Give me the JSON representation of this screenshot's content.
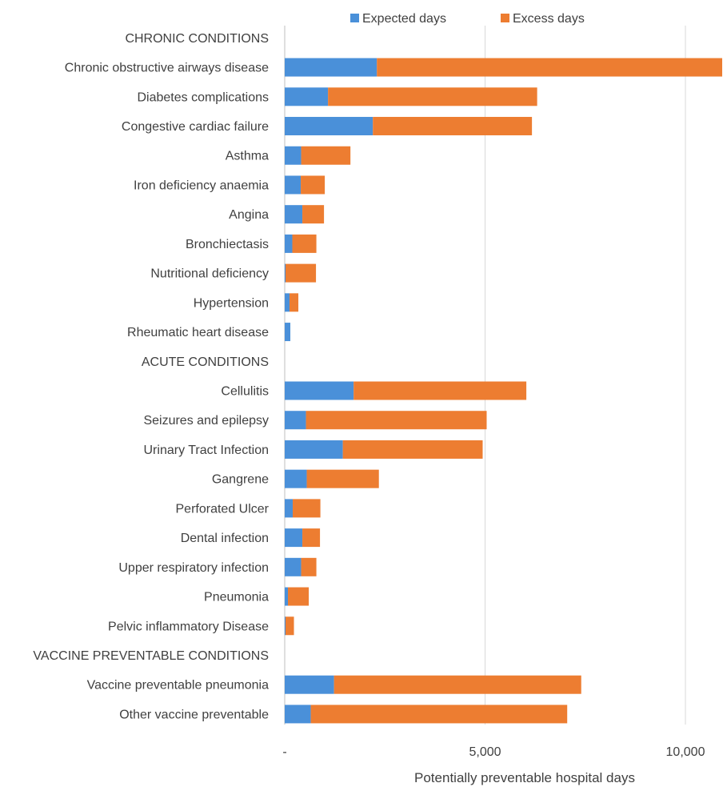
{
  "chart_data": {
    "type": "bar",
    "orientation": "horizontal",
    "stacked": true,
    "title": "",
    "xlabel": "Potentially preventable hospital days",
    "ylabel": "",
    "xlim": [
      0,
      11000
    ],
    "xticks": [
      0,
      5000,
      10000
    ],
    "xtick_labels": [
      "-",
      "5,000",
      "10,000"
    ],
    "grid": "vertical",
    "legend_position": "top",
    "categories": [
      "CHRONIC CONDITIONS",
      "Chronic obstructive airways disease",
      "Diabetes complications",
      "Congestive cardiac failure",
      "Asthma",
      "Iron deficiency anaemia",
      "Angina",
      "Bronchiectasis",
      "Nutritional deficiency",
      "Hypertension",
      "Rheumatic heart disease",
      "ACUTE CONDITIONS",
      "Cellulitis",
      "Seizures and epilepsy",
      "Urinary Tract Infection",
      "Gangrene",
      "Perforated Ulcer",
      "Dental infection",
      "Upper respiratory infection",
      "Pneumonia",
      "Pelvic inflammatory Disease",
      "VACCINE PREVENTABLE CONDITIONS",
      "Vaccine preventable pneumonia",
      "Other vaccine preventable"
    ],
    "series": [
      {
        "name": "Expected days",
        "color": "#4a90d9",
        "values": [
          null,
          2300,
          1080,
          2200,
          410,
          400,
          440,
          190,
          20,
          120,
          140,
          null,
          1720,
          530,
          1450,
          550,
          200,
          440,
          410,
          80,
          20,
          null,
          1230,
          650
        ]
      },
      {
        "name": "Excess days",
        "color": "#ed7d31",
        "values": [
          null,
          8700,
          5220,
          3970,
          1230,
          600,
          540,
          600,
          760,
          220,
          0,
          null,
          4310,
          4510,
          3490,
          1800,
          690,
          440,
          380,
          520,
          210,
          null,
          6170,
          6400
        ]
      }
    ]
  }
}
